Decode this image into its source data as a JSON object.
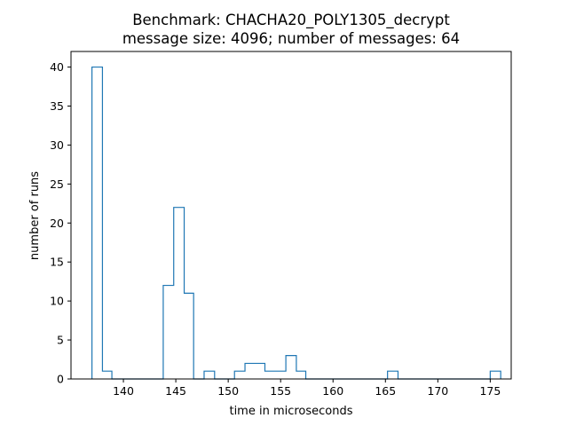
{
  "chart_data": {
    "type": "histogram",
    "title": "Benchmark: CHACHA20_POLY1305_decrypt",
    "subtitle": "message size: 4096; number of messages: 64",
    "xlabel": "time in microseconds",
    "ylabel": "number of runs",
    "xlim": [
      135,
      177
    ],
    "ylim": [
      0,
      42
    ],
    "xticks": [
      140,
      145,
      150,
      155,
      160,
      165,
      170,
      175
    ],
    "yticks": [
      0,
      5,
      10,
      15,
      20,
      25,
      30,
      35,
      40
    ],
    "grid": false,
    "series_color": "#1f77b4",
    "bins": [
      {
        "start": 137.0,
        "end": 138.0,
        "count": 40
      },
      {
        "start": 138.0,
        "end": 138.9,
        "count": 1
      },
      {
        "start": 138.9,
        "end": 143.8,
        "count": 0
      },
      {
        "start": 143.8,
        "end": 144.8,
        "count": 12
      },
      {
        "start": 144.8,
        "end": 145.8,
        "count": 22
      },
      {
        "start": 145.8,
        "end": 146.7,
        "count": 11
      },
      {
        "start": 146.7,
        "end": 147.7,
        "count": 0
      },
      {
        "start": 147.7,
        "end": 148.7,
        "count": 1
      },
      {
        "start": 148.7,
        "end": 150.6,
        "count": 0
      },
      {
        "start": 150.6,
        "end": 151.6,
        "count": 1
      },
      {
        "start": 151.6,
        "end": 153.5,
        "count": 2
      },
      {
        "start": 153.5,
        "end": 155.5,
        "count": 1
      },
      {
        "start": 155.5,
        "end": 156.5,
        "count": 3
      },
      {
        "start": 156.5,
        "end": 157.4,
        "count": 1
      },
      {
        "start": 157.4,
        "end": 165.2,
        "count": 0
      },
      {
        "start": 165.2,
        "end": 166.2,
        "count": 1
      },
      {
        "start": 166.2,
        "end": 175.0,
        "count": 0
      },
      {
        "start": 175.0,
        "end": 176.0,
        "count": 1
      }
    ]
  }
}
